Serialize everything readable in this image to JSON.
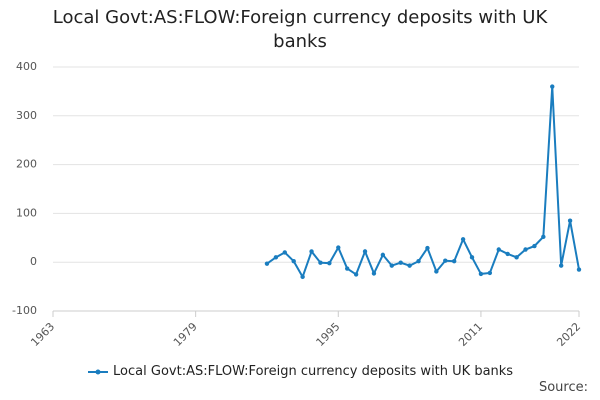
{
  "chart_data": {
    "type": "line",
    "title": "Local Govt:AS:FLOW:Foreign currency deposits with UK banks",
    "x": [
      1987,
      1988,
      1989,
      1990,
      1991,
      1992,
      1993,
      1994,
      1995,
      1996,
      1997,
      1998,
      1999,
      2000,
      2001,
      2002,
      2003,
      2004,
      2005,
      2006,
      2007,
      2008,
      2009,
      2010,
      2011,
      2012,
      2013,
      2014,
      2015,
      2016,
      2017,
      2018,
      2019,
      2020,
      2021,
      2022
    ],
    "series": [
      {
        "name": "Local Govt:AS:FLOW:Foreign currency deposits with UK banks",
        "color": "#1a7dbf",
        "values": [
          -3,
          10,
          20,
          2,
          -30,
          22,
          -1,
          -2,
          30,
          -13,
          -25,
          22,
          -23,
          15,
          -7,
          -1,
          -7,
          2,
          29,
          -19,
          3,
          2,
          47,
          10,
          -24,
          -22,
          26,
          17,
          10,
          26,
          33,
          52,
          360,
          -7,
          85,
          -15
        ]
      }
    ],
    "xlim": [
      1963,
      2022
    ],
    "xticks": [
      1963,
      1979,
      1995,
      2011,
      2022
    ],
    "ylim": [
      -100,
      400
    ],
    "yticks": [
      -100,
      0,
      100,
      200,
      300,
      400
    ],
    "grid": true,
    "legend": "bottom",
    "source": "Source:"
  }
}
